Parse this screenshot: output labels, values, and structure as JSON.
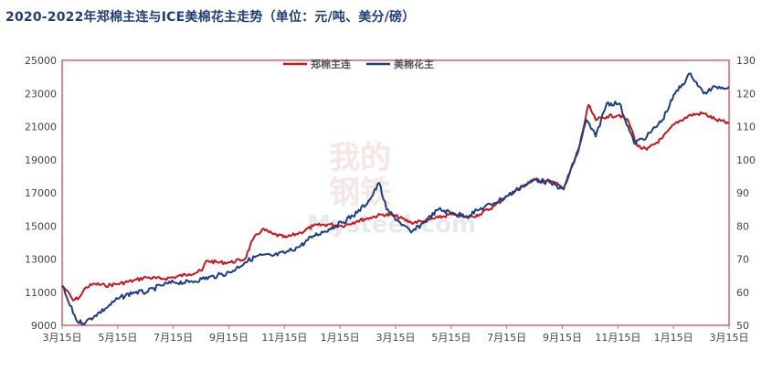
{
  "chart_data": {
    "type": "line",
    "title": "2020-2022年郑棉主连与ICE美棉花主走势（单位：元/吨、美分/磅）",
    "x_tick_labels": [
      "3月15日",
      "5月15日",
      "7月15日",
      "9月15日",
      "11月15日",
      "1月15日",
      "3月15日",
      "5月15日",
      "7月15日",
      "9月15日",
      "11月15日",
      "1月15日",
      "3月15日"
    ],
    "x_range": [
      "2020-03-15",
      "2022-03-15"
    ],
    "ylim_left": [
      9000,
      25000
    ],
    "y_ticks_left": [
      9000,
      11000,
      13000,
      15000,
      17000,
      19000,
      21000,
      23000,
      25000
    ],
    "ylim_right": [
      50,
      130
    ],
    "y_ticks_right": [
      50,
      60,
      70,
      80,
      90,
      100,
      110,
      120,
      130
    ],
    "legend_position": "top-center",
    "grid": false,
    "series": [
      {
        "name": "郑棉主连",
        "axis": "left",
        "color": "#c8161d",
        "points": [
          [
            "2020-03-15",
            11400
          ],
          [
            "2020-03-20",
            11100
          ],
          [
            "2020-03-27",
            10500
          ],
          [
            "2020-04-03",
            10700
          ],
          [
            "2020-04-10",
            11300
          ],
          [
            "2020-04-20",
            11500
          ],
          [
            "2020-05-01",
            11400
          ],
          [
            "2020-05-15",
            11500
          ],
          [
            "2020-06-01",
            11700
          ],
          [
            "2020-06-15",
            11900
          ],
          [
            "2020-07-01",
            11800
          ],
          [
            "2020-07-15",
            11900
          ],
          [
            "2020-08-01",
            12100
          ],
          [
            "2020-08-15",
            12300
          ],
          [
            "2020-08-20",
            12900
          ],
          [
            "2020-09-01",
            12800
          ],
          [
            "2020-09-15",
            12800
          ],
          [
            "2020-10-01",
            13000
          ],
          [
            "2020-10-10",
            14200
          ],
          [
            "2020-10-20",
            14800
          ],
          [
            "2020-11-01",
            14500
          ],
          [
            "2020-11-15",
            14300
          ],
          [
            "2020-12-01",
            14600
          ],
          [
            "2020-12-15",
            15000
          ],
          [
            "2021-01-01",
            15100
          ],
          [
            "2021-01-15",
            15000
          ],
          [
            "2021-02-01",
            15300
          ],
          [
            "2021-02-15",
            15500
          ],
          [
            "2021-03-01",
            15700
          ],
          [
            "2021-03-15",
            15600
          ],
          [
            "2021-04-01",
            15200
          ],
          [
            "2021-04-15",
            15300
          ],
          [
            "2021-05-01",
            15500
          ],
          [
            "2021-05-15",
            15700
          ],
          [
            "2021-06-01",
            15500
          ],
          [
            "2021-06-15",
            15700
          ],
          [
            "2021-07-01",
            16200
          ],
          [
            "2021-07-15",
            16800
          ],
          [
            "2021-08-01",
            17400
          ],
          [
            "2021-08-15",
            17800
          ],
          [
            "2021-09-01",
            17700
          ],
          [
            "2021-09-15",
            17300
          ],
          [
            "2021-10-01",
            19500
          ],
          [
            "2021-10-12",
            22300
          ],
          [
            "2021-10-20",
            21400
          ],
          [
            "2021-11-01",
            21600
          ],
          [
            "2021-11-15",
            21700
          ],
          [
            "2021-11-25",
            21300
          ],
          [
            "2021-12-05",
            19800
          ],
          [
            "2021-12-15",
            19600
          ],
          [
            "2022-01-01",
            20300
          ],
          [
            "2022-01-15",
            21200
          ],
          [
            "2022-02-01",
            21700
          ],
          [
            "2022-02-15",
            21800
          ],
          [
            "2022-03-01",
            21400
          ],
          [
            "2022-03-15",
            21200
          ]
        ]
      },
      {
        "name": "美棉花主",
        "axis": "right",
        "color": "#1d3d82",
        "points": [
          [
            "2020-03-15",
            62
          ],
          [
            "2020-03-22",
            57
          ],
          [
            "2020-04-01",
            51
          ],
          [
            "2020-04-10",
            51
          ],
          [
            "2020-04-20",
            53
          ],
          [
            "2020-05-01",
            55
          ],
          [
            "2020-05-15",
            58
          ],
          [
            "2020-06-01",
            60
          ],
          [
            "2020-06-15",
            60
          ],
          [
            "2020-07-01",
            62
          ],
          [
            "2020-07-15",
            63
          ],
          [
            "2020-08-01",
            63
          ],
          [
            "2020-08-15",
            64
          ],
          [
            "2020-09-01",
            65
          ],
          [
            "2020-09-15",
            66
          ],
          [
            "2020-10-01",
            69
          ],
          [
            "2020-10-15",
            71
          ],
          [
            "2020-11-01",
            71
          ],
          [
            "2020-11-15",
            72
          ],
          [
            "2020-12-01",
            74
          ],
          [
            "2020-12-15",
            77
          ],
          [
            "2021-01-01",
            79
          ],
          [
            "2021-01-15",
            81
          ],
          [
            "2021-02-01",
            84
          ],
          [
            "2021-02-15",
            88
          ],
          [
            "2021-02-25",
            93
          ],
          [
            "2021-03-05",
            85
          ],
          [
            "2021-03-20",
            81
          ],
          [
            "2021-04-01",
            78
          ],
          [
            "2021-04-15",
            81
          ],
          [
            "2021-05-01",
            85
          ],
          [
            "2021-05-15",
            84
          ],
          [
            "2021-06-01",
            83
          ],
          [
            "2021-06-15",
            85
          ],
          [
            "2021-07-01",
            87
          ],
          [
            "2021-07-15",
            89
          ],
          [
            "2021-08-01",
            92
          ],
          [
            "2021-08-15",
            94
          ],
          [
            "2021-09-01",
            93
          ],
          [
            "2021-09-15",
            91
          ],
          [
            "2021-10-01",
            103
          ],
          [
            "2021-10-10",
            112
          ],
          [
            "2021-10-20",
            107
          ],
          [
            "2021-11-01",
            117
          ],
          [
            "2021-11-15",
            117
          ],
          [
            "2021-12-01",
            105
          ],
          [
            "2021-12-15",
            107
          ],
          [
            "2022-01-01",
            112
          ],
          [
            "2022-01-15",
            120
          ],
          [
            "2022-02-01",
            126
          ],
          [
            "2022-02-15",
            120
          ],
          [
            "2022-03-01",
            122
          ],
          [
            "2022-03-15",
            122
          ]
        ]
      }
    ]
  }
}
